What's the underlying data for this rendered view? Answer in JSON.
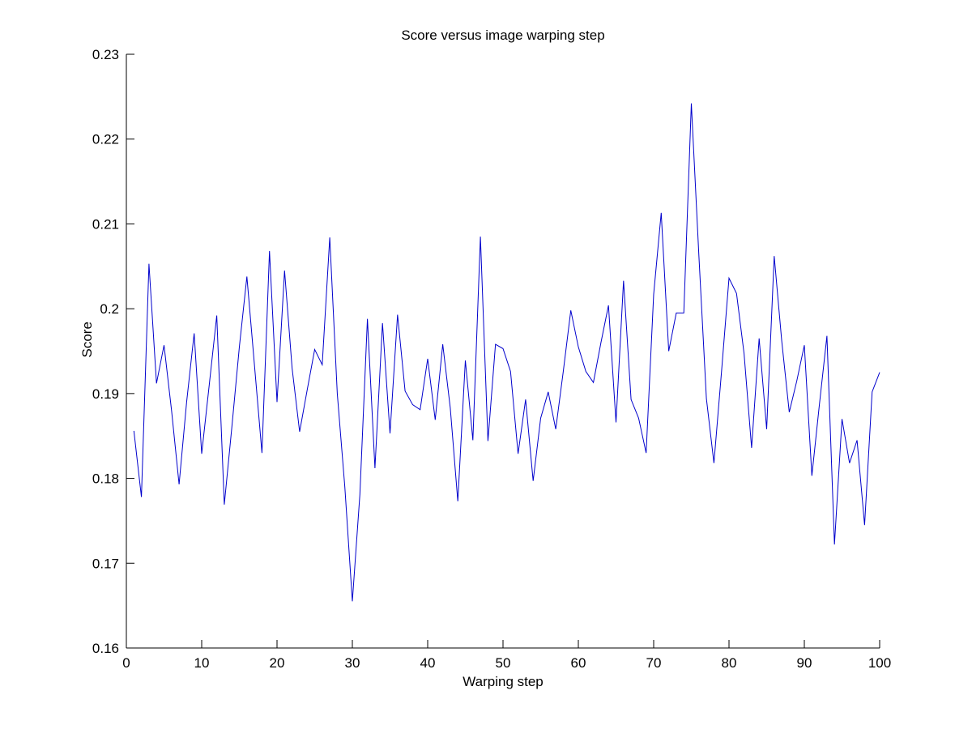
{
  "figure": {
    "title": "Score versus image warping step",
    "xlabel": "Warping step",
    "ylabel": "Score",
    "line_color": "#0000cc",
    "axis_color": "#000000",
    "background": "#ffffff"
  },
  "chart_data": {
    "type": "line",
    "title": "Score versus image warping step",
    "xlabel": "Warping step",
    "ylabel": "Score",
    "xlim": [
      0,
      100
    ],
    "ylim": [
      0.16,
      0.23
    ],
    "grid": false,
    "legend_position": "none",
    "x_ticks": [
      0,
      10,
      20,
      30,
      40,
      50,
      60,
      70,
      80,
      90,
      100
    ],
    "y_ticks": [
      0.16,
      0.17,
      0.18,
      0.19,
      0.2,
      0.21,
      0.22,
      0.23
    ],
    "y_tick_labels": [
      "0.16",
      "0.17",
      "0.18",
      "0.19",
      "0.2",
      "0.21",
      "0.22",
      "0.23"
    ],
    "x": [
      1,
      2,
      3,
      4,
      5,
      6,
      7,
      8,
      9,
      10,
      11,
      12,
      13,
      14,
      15,
      16,
      17,
      18,
      19,
      20,
      21,
      22,
      23,
      24,
      25,
      26,
      27,
      28,
      29,
      30,
      31,
      32,
      33,
      34,
      35,
      36,
      37,
      38,
      39,
      40,
      41,
      42,
      43,
      44,
      45,
      46,
      47,
      48,
      49,
      50,
      51,
      52,
      53,
      54,
      55,
      56,
      57,
      58,
      59,
      60,
      61,
      62,
      63,
      64,
      65,
      66,
      67,
      68,
      69,
      70,
      71,
      72,
      73,
      74,
      75,
      76,
      77,
      78,
      79,
      80,
      81,
      82,
      83,
      84,
      85,
      86,
      87,
      88,
      89,
      90,
      91,
      92,
      93,
      94,
      95,
      96,
      97,
      98,
      99,
      100
    ],
    "y": [
      0.1856,
      0.1778,
      0.2053,
      0.1912,
      0.1957,
      0.188,
      0.1793,
      0.189,
      0.1971,
      0.1829,
      0.191,
      0.1992,
      0.1769,
      0.186,
      0.1955,
      0.2038,
      0.1934,
      0.183,
      0.2068,
      0.189,
      0.2045,
      0.193,
      0.1855,
      0.1904,
      0.1952,
      0.1934,
      0.2084,
      0.19,
      0.179,
      0.1655,
      0.1781,
      0.1988,
      0.1812,
      0.1983,
      0.1853,
      0.1993,
      0.1903,
      0.1887,
      0.1881,
      0.1941,
      0.1869,
      0.1958,
      0.1883,
      0.1773,
      0.1939,
      0.1845,
      0.2085,
      0.1844,
      0.1958,
      0.1953,
      0.1926,
      0.1829,
      0.1893,
      0.1797,
      0.1871,
      0.1902,
      0.1858,
      0.1926,
      0.1998,
      0.1955,
      0.1926,
      0.1913,
      0.196,
      0.2004,
      0.1866,
      0.2033,
      0.1893,
      0.1871,
      0.183,
      0.2017,
      0.2113,
      0.195,
      0.1995,
      0.1995,
      0.2242,
      0.2063,
      0.1894,
      0.1818,
      0.1925,
      0.2036,
      0.2018,
      0.1947,
      0.1836,
      0.1965,
      0.1858,
      0.2062,
      0.1962,
      0.1878,
      0.1915,
      0.1957,
      0.1803,
      0.1887,
      0.1968,
      0.1722,
      0.187,
      0.1818,
      0.1845,
      0.1745,
      0.1902,
      0.1925
    ]
  }
}
